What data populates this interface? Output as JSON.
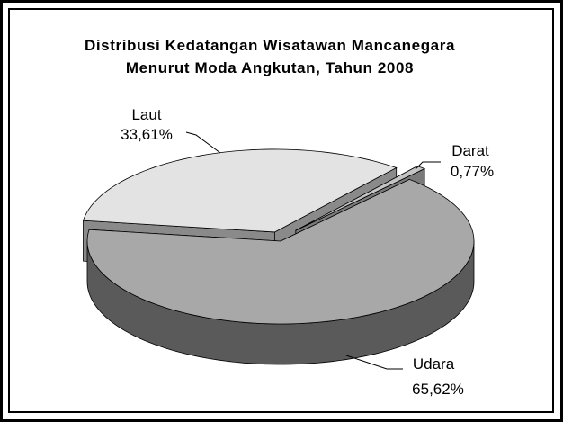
{
  "chart_data": {
    "type": "pie",
    "title": "Distribusi Kedatangan Wisatawan Mancanegara Menurut Moda Angkutan, Tahun 2008",
    "categories": [
      "Laut",
      "Darat",
      "Udara"
    ],
    "values": [
      33.61,
      0.77,
      65.62
    ],
    "value_labels": [
      "33,61%",
      "0,77%",
      "65,62%"
    ],
    "colors": [
      "#e3e3e3",
      "#c4c4c4",
      "#a8a8a8"
    ]
  }
}
